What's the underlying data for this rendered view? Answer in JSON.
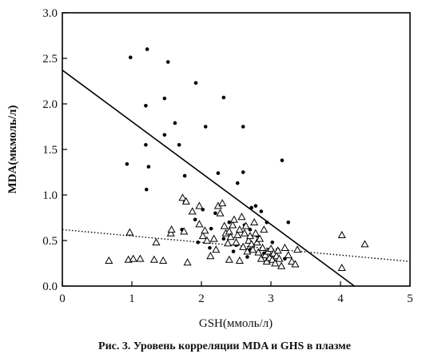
{
  "chart_data": {
    "type": "scatter",
    "caption": "Рис. 3. Уровень корреляции MDA и GHS в плазме",
    "xlabel": "GSH(ммоль/л)",
    "ylabel": "MDA(мкмоль/л)",
    "xlim": [
      0,
      5
    ],
    "ylim": [
      0,
      3.0
    ],
    "x_ticks": [
      "0",
      "1",
      "2",
      "3",
      "4",
      "5"
    ],
    "y_ticks": [
      "0.0",
      "0.5",
      "1.0",
      "1.5",
      "2.0",
      "2.5",
      "3.0"
    ],
    "x_tick_values": [
      0,
      1,
      2,
      3,
      4,
      5
    ],
    "y_tick_values": [
      0,
      0.5,
      1.0,
      1.5,
      2.0,
      2.5,
      3.0
    ],
    "grid": false,
    "series": [
      {
        "marker": "filled-circle",
        "color": "#000000",
        "points": [
          [
            0.98,
            2.51
          ],
          [
            1.22,
            2.6
          ],
          [
            1.52,
            2.46
          ],
          [
            1.92,
            2.23
          ],
          [
            2.32,
            2.07
          ],
          [
            1.47,
            2.06
          ],
          [
            1.2,
            1.98
          ],
          [
            1.62,
            1.79
          ],
          [
            2.06,
            1.75
          ],
          [
            2.6,
            1.75
          ],
          [
            1.47,
            1.66
          ],
          [
            1.2,
            1.55
          ],
          [
            1.68,
            1.55
          ],
          [
            0.93,
            1.34
          ],
          [
            1.24,
            1.31
          ],
          [
            3.16,
            1.38
          ],
          [
            1.76,
            1.21
          ],
          [
            2.24,
            1.24
          ],
          [
            2.6,
            1.25
          ],
          [
            2.52,
            1.13
          ],
          [
            1.21,
            1.06
          ],
          [
            1.76,
            0.92
          ],
          [
            2.02,
            0.84
          ],
          [
            2.72,
            0.86
          ],
          [
            2.2,
            0.8
          ],
          [
            2.78,
            0.88
          ],
          [
            2.86,
            0.82
          ],
          [
            1.91,
            0.73
          ],
          [
            2.4,
            0.7
          ],
          [
            2.94,
            0.7
          ],
          [
            3.25,
            0.7
          ],
          [
            1.72,
            0.62
          ],
          [
            2.14,
            0.63
          ],
          [
            2.62,
            0.67
          ],
          [
            2.7,
            0.62
          ],
          [
            1.95,
            0.48
          ],
          [
            2.32,
            0.52
          ],
          [
            2.5,
            0.45
          ],
          [
            2.8,
            0.55
          ],
          [
            3.02,
            0.48
          ],
          [
            2.12,
            0.42
          ],
          [
            2.46,
            0.38
          ],
          [
            2.7,
            0.4
          ],
          [
            2.9,
            0.36
          ],
          [
            3.1,
            0.4
          ],
          [
            2.66,
            0.32
          ],
          [
            2.95,
            0.29
          ],
          [
            3.2,
            0.3
          ]
        ]
      },
      {
        "marker": "open-triangle",
        "color": "#000000",
        "points": [
          [
            0.67,
            0.28
          ],
          [
            0.95,
            0.29
          ],
          [
            1.02,
            0.3
          ],
          [
            1.12,
            0.3
          ],
          [
            1.32,
            0.29
          ],
          [
            1.45,
            0.28
          ],
          [
            1.8,
            0.26
          ],
          [
            2.13,
            0.33
          ],
          [
            2.4,
            0.29
          ],
          [
            2.55,
            0.28
          ],
          [
            0.97,
            0.59
          ],
          [
            1.35,
            0.48
          ],
          [
            1.56,
            0.58
          ],
          [
            1.57,
            0.62
          ],
          [
            1.75,
            0.6
          ],
          [
            1.73,
            0.97
          ],
          [
            1.78,
            0.93
          ],
          [
            1.87,
            0.82
          ],
          [
            1.97,
            0.68
          ],
          [
            1.97,
            0.88
          ],
          [
            2.02,
            0.55
          ],
          [
            2.05,
            0.61
          ],
          [
            2.08,
            0.5
          ],
          [
            2.18,
            0.52
          ],
          [
            2.21,
            0.4
          ],
          [
            2.24,
            0.88
          ],
          [
            2.27,
            0.8
          ],
          [
            2.3,
            0.91
          ],
          [
            2.33,
            0.66
          ],
          [
            2.35,
            0.58
          ],
          [
            2.38,
            0.47
          ],
          [
            2.4,
            0.6
          ],
          [
            2.42,
            0.54
          ],
          [
            2.45,
            0.67
          ],
          [
            2.47,
            0.73
          ],
          [
            2.5,
            0.48
          ],
          [
            2.52,
            0.56
          ],
          [
            2.55,
            0.62
          ],
          [
            2.58,
            0.76
          ],
          [
            2.6,
            0.43
          ],
          [
            2.62,
            0.58
          ],
          [
            2.64,
            0.66
          ],
          [
            2.66,
            0.38
          ],
          [
            2.68,
            0.5
          ],
          [
            2.7,
            0.55
          ],
          [
            2.72,
            0.46
          ],
          [
            2.74,
            0.4
          ],
          [
            2.76,
            0.7
          ],
          [
            2.78,
            0.58
          ],
          [
            2.8,
            0.48
          ],
          [
            2.82,
            0.37
          ],
          [
            2.84,
            0.52
          ],
          [
            2.86,
            0.3
          ],
          [
            2.88,
            0.42
          ],
          [
            2.9,
            0.62
          ],
          [
            2.92,
            0.34
          ],
          [
            2.94,
            0.27
          ],
          [
            2.96,
            0.38
          ],
          [
            2.98,
            0.31
          ],
          [
            3.0,
            0.41
          ],
          [
            3.02,
            0.29
          ],
          [
            3.04,
            0.36
          ],
          [
            3.06,
            0.25
          ],
          [
            3.08,
            0.33
          ],
          [
            3.1,
            0.39
          ],
          [
            3.12,
            0.3
          ],
          [
            3.15,
            0.22
          ],
          [
            3.2,
            0.42
          ],
          [
            3.25,
            0.34
          ],
          [
            3.3,
            0.27
          ],
          [
            3.35,
            0.24
          ],
          [
            3.38,
            0.4
          ],
          [
            4.02,
            0.2
          ],
          [
            4.02,
            0.56
          ],
          [
            4.35,
            0.46
          ]
        ]
      }
    ],
    "lines": [
      {
        "style": "solid",
        "x": [
          0,
          4.2
        ],
        "y": [
          2.37,
          0.0
        ]
      },
      {
        "style": "dotted",
        "x": [
          0,
          5
        ],
        "y": [
          0.62,
          0.27
        ]
      }
    ]
  }
}
